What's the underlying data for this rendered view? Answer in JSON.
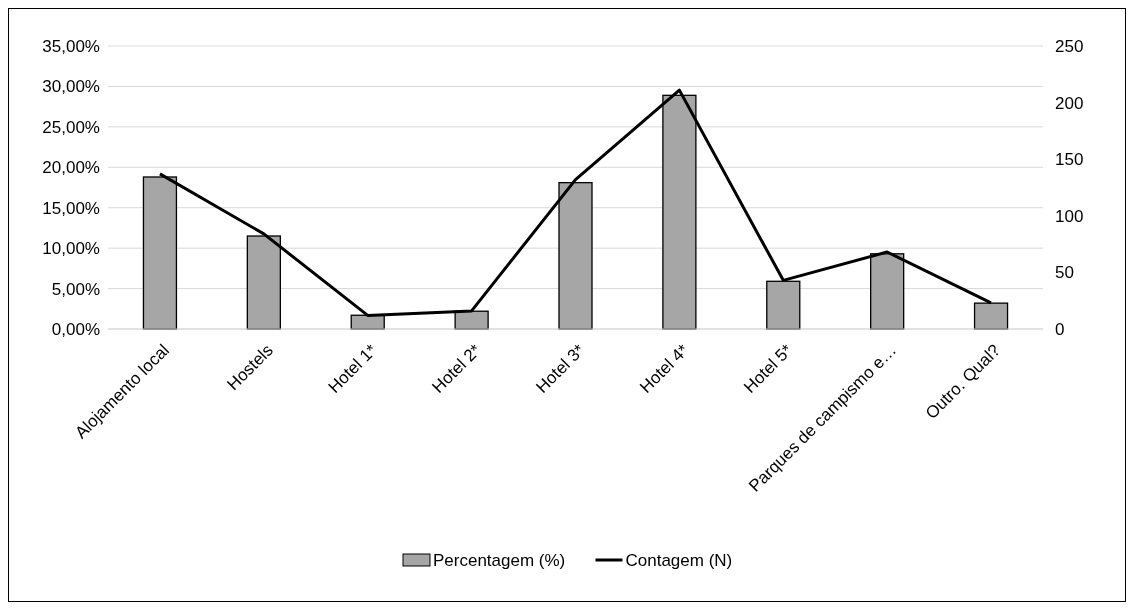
{
  "chart_data": {
    "type": "bar",
    "categories": [
      "Alojamento local",
      "Hostels",
      "Hotel 1*",
      "Hotel 2*",
      "Hotel 3*",
      "Hotel 4*",
      "Hotel 5*",
      "Parques de campismo e…",
      "Outro. Qual?"
    ],
    "series": [
      {
        "name": "Percentagem (%)",
        "color": "#a6a6a6",
        "values": [
          18.8,
          11.5,
          1.7,
          2.2,
          18.1,
          28.9,
          5.9,
          9.3,
          3.2
        ]
      },
      {
        "name": "Contagem (N)",
        "type": "line",
        "axis": "y2",
        "color": "#000000",
        "values": [
          137,
          84,
          12,
          16,
          132,
          211,
          43,
          68,
          23
        ]
      }
    ],
    "ylim": [
      0,
      35
    ],
    "yticks": [
      {
        "value": 0,
        "label": "0,00%"
      },
      {
        "value": 5,
        "label": "5,00%"
      },
      {
        "value": 10,
        "label": "10,00%"
      },
      {
        "value": 15,
        "label": "15,00%"
      },
      {
        "value": 20,
        "label": "20,00%"
      },
      {
        "value": 25,
        "label": "25,00%"
      },
      {
        "value": 30,
        "label": "30,00%"
      },
      {
        "value": 35,
        "label": "35,00%"
      }
    ],
    "y2lim": [
      0,
      250
    ],
    "y2ticks": [
      0,
      50,
      100,
      150,
      200,
      250
    ],
    "grid": "y",
    "legend": "bottom",
    "marker": "none",
    "line_style": "solid"
  }
}
